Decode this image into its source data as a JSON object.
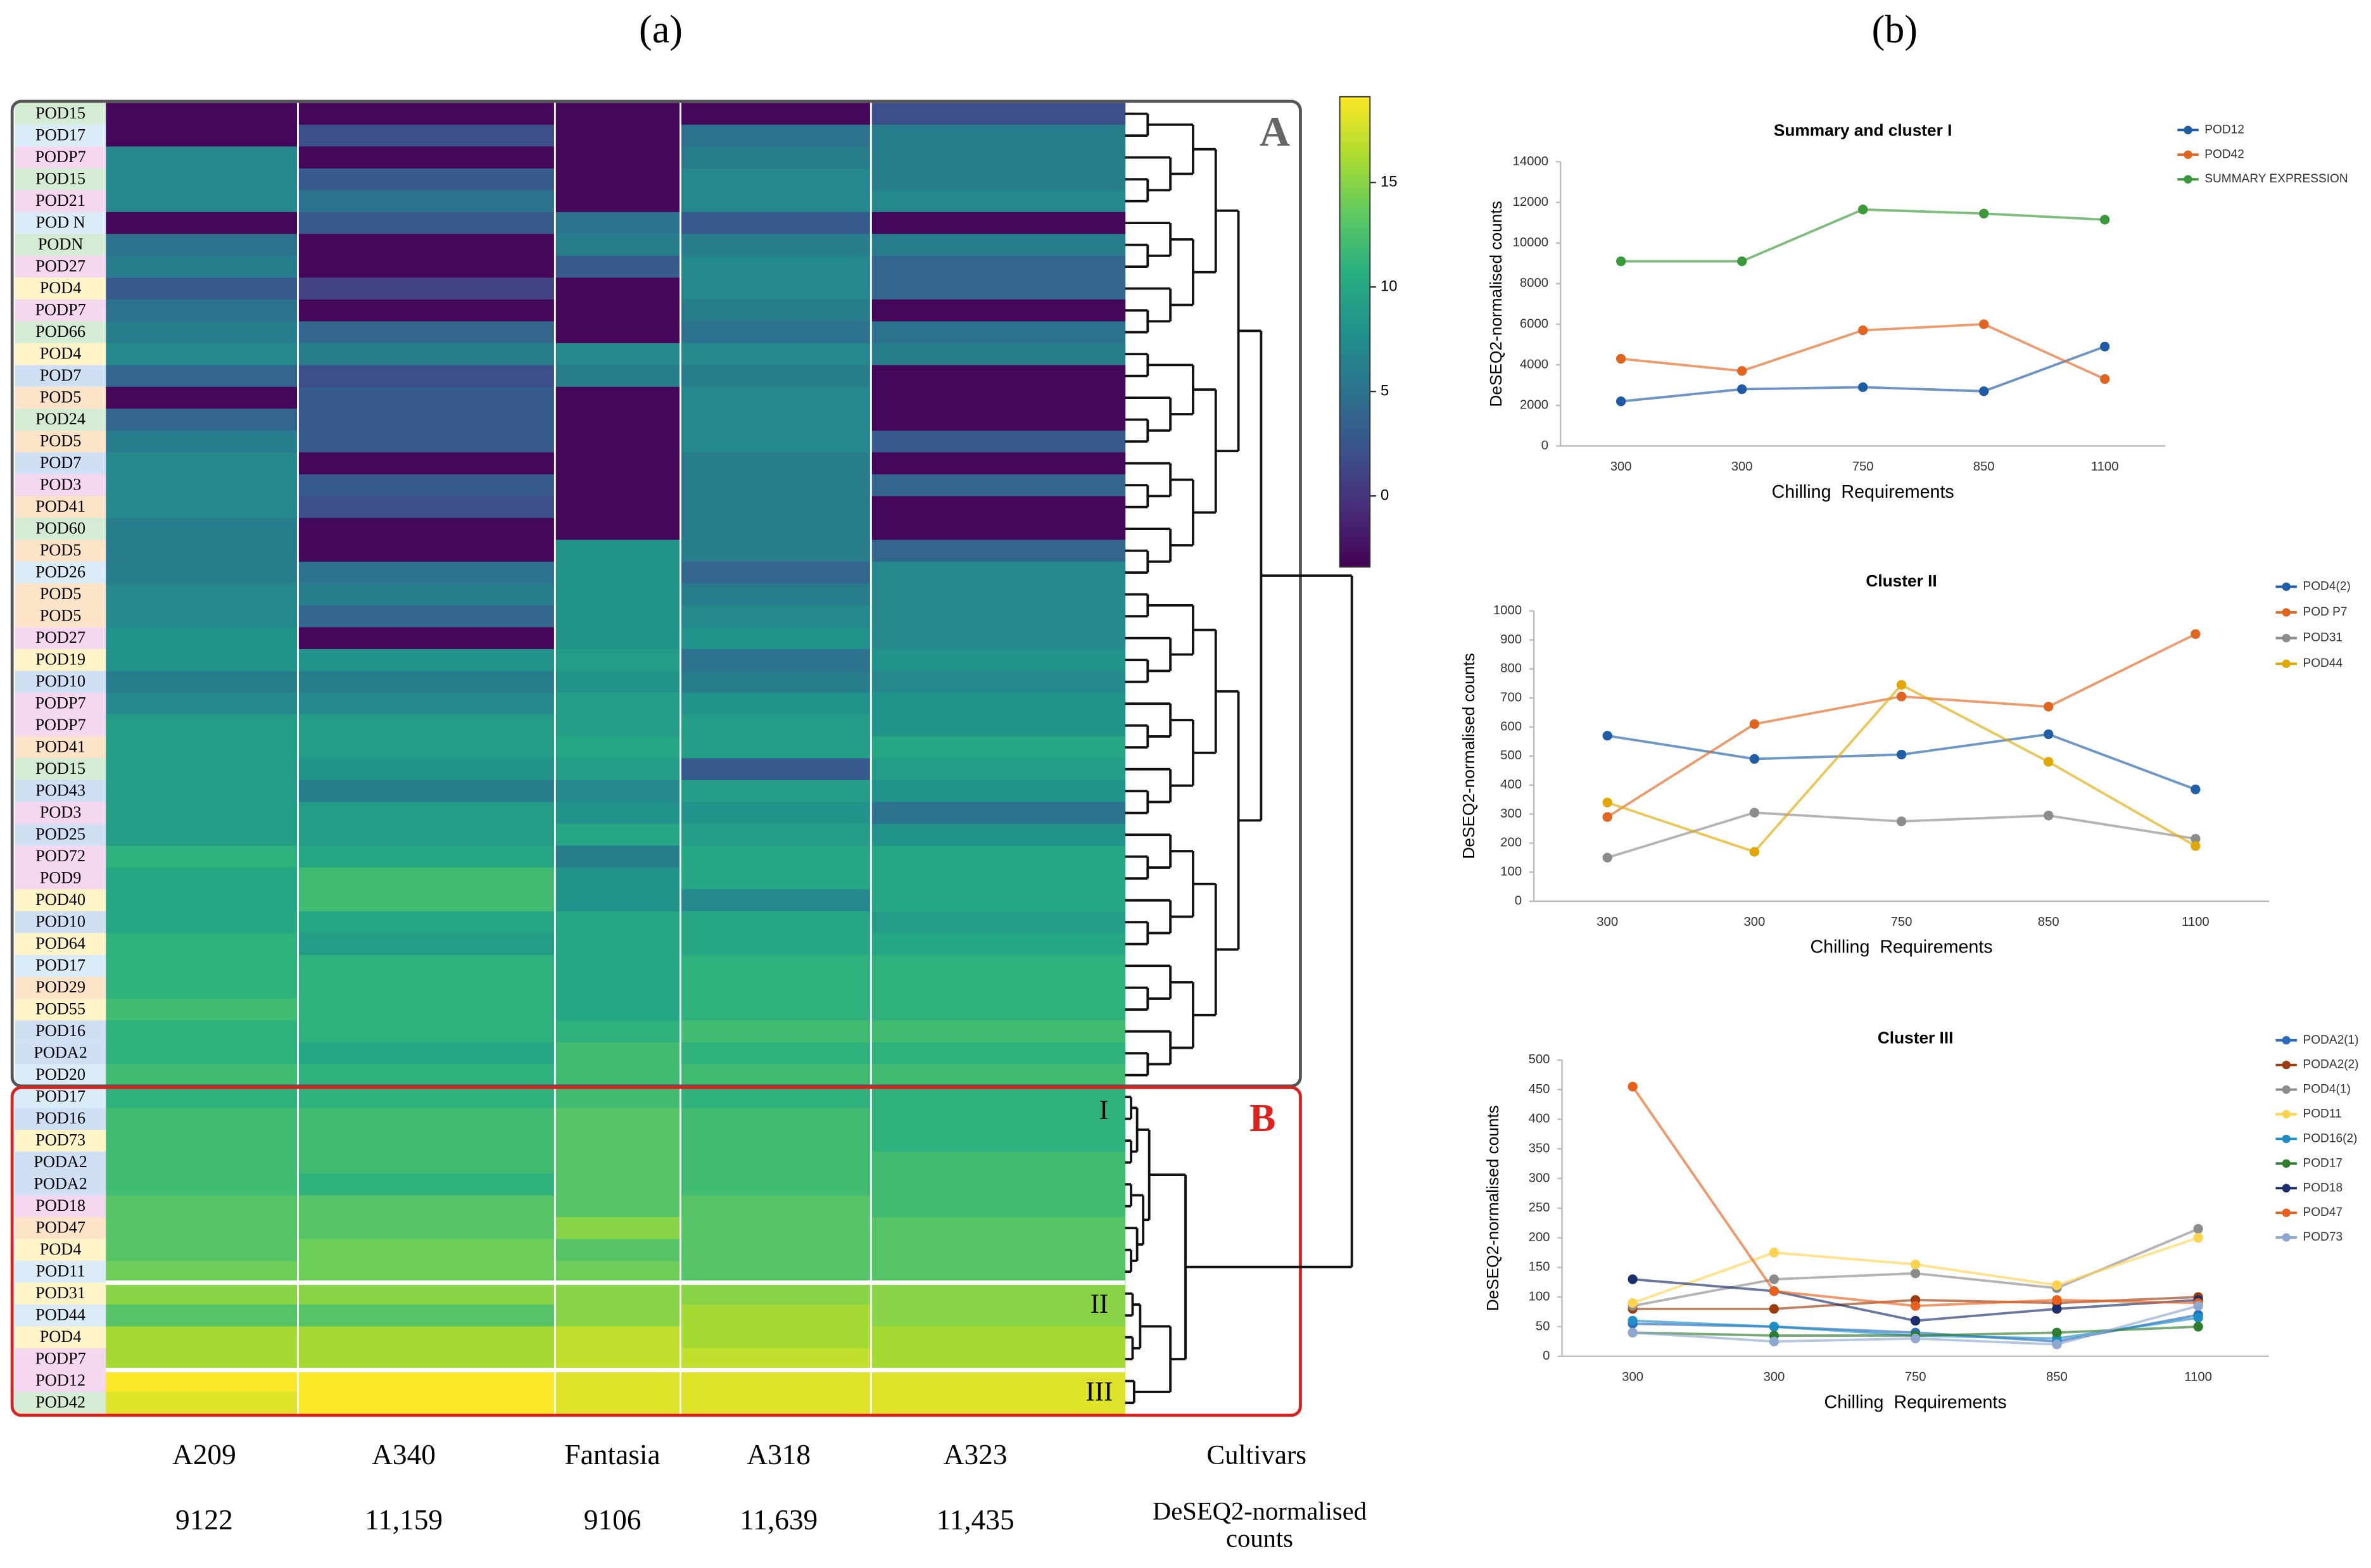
{
  "panel_labels": [
    "(a)",
    "(b)"
  ],
  "chart_data": [
    {
      "type": "heatmap",
      "rows": [
        "POD15",
        "POD17",
        "PODP7",
        "POD15",
        "POD21",
        "POD N",
        "PODN",
        "POD27",
        "POD4",
        "PODP7",
        "POD66",
        "POD4",
        "POD7",
        "POD5",
        "POD24",
        "POD5",
        "POD7",
        "POD3",
        "POD41",
        "POD60",
        "POD5",
        "POD26",
        "POD5",
        "POD5",
        "POD27",
        "POD19",
        "POD10",
        "PODP7",
        "PODP7",
        "POD41",
        "POD15",
        "POD43",
        "POD3",
        "POD25",
        "POD72",
        "POD9",
        "POD40",
        "POD10",
        "POD64",
        "POD17",
        "POD29",
        "POD55",
        "POD16",
        "PODA2",
        "POD20",
        "POD17",
        "POD16",
        "POD73",
        "PODA2",
        "PODA2",
        "POD18",
        "POD47",
        "POD4",
        "POD11",
        "POD31",
        "POD44",
        "POD4",
        "PODP7",
        "POD12",
        "POD42"
      ],
      "columns": [
        "A209",
        "A340",
        "Fantasia",
        "A318",
        "A323"
      ],
      "values": [
        [
          -3,
          -3,
          -3,
          -3,
          2
        ],
        [
          -3,
          2,
          -3,
          5,
          6
        ],
        [
          7,
          -3,
          -3,
          6,
          6
        ],
        [
          7,
          3,
          -3,
          7,
          6
        ],
        [
          7,
          5,
          -3,
          7,
          7
        ],
        [
          -3,
          3,
          5,
          3,
          -3
        ],
        [
          5,
          -3,
          6,
          6,
          6
        ],
        [
          6,
          -3,
          3,
          7,
          4
        ],
        [
          3,
          1,
          -3,
          7,
          4
        ],
        [
          5,
          -3,
          -3,
          6,
          -3
        ],
        [
          6,
          4,
          -3,
          5,
          5
        ],
        [
          7,
          6,
          7,
          7,
          6
        ],
        [
          4,
          2,
          6,
          6,
          -3
        ],
        [
          -3,
          3,
          -3,
          7,
          -3
        ],
        [
          4,
          3,
          -3,
          7,
          -3
        ],
        [
          6,
          3,
          -3,
          7,
          3
        ],
        [
          7,
          -3,
          -3,
          6,
          -3
        ],
        [
          7,
          3,
          -3,
          6,
          4
        ],
        [
          7,
          2,
          -3,
          6,
          -3
        ],
        [
          6,
          -3,
          -3,
          6,
          -3
        ],
        [
          6,
          -3,
          8,
          6,
          4
        ],
        [
          6,
          5,
          8,
          4,
          7
        ],
        [
          7,
          6,
          8,
          6,
          7
        ],
        [
          7,
          4,
          8,
          7,
          7
        ],
        [
          8,
          -3,
          8,
          8,
          7
        ],
        [
          8,
          8,
          9,
          5,
          8
        ],
        [
          6,
          6,
          8,
          6,
          7
        ],
        [
          7,
          7,
          9,
          8,
          8
        ],
        [
          9,
          9,
          9,
          9,
          8
        ],
        [
          9,
          9,
          10,
          9,
          10
        ],
        [
          9,
          8,
          9,
          3,
          9
        ],
        [
          9,
          6,
          7,
          9,
          8
        ],
        [
          9,
          9,
          8,
          8,
          5
        ],
        [
          9,
          9,
          10,
          9,
          8
        ],
        [
          11,
          10,
          6,
          10,
          10
        ],
        [
          10,
          12,
          8,
          10,
          10
        ],
        [
          10,
          12,
          8,
          7,
          10
        ],
        [
          10,
          10,
          10,
          10,
          9
        ],
        [
          11,
          9,
          10,
          10,
          10
        ],
        [
          11,
          11,
          10,
          11,
          11
        ],
        [
          11,
          11,
          10,
          11,
          11
        ],
        [
          12,
          11,
          10,
          11,
          11
        ],
        [
          11,
          11,
          11,
          12,
          12
        ],
        [
          11,
          10,
          12,
          11,
          11
        ],
        [
          12,
          11,
          12,
          12,
          12
        ],
        [
          11,
          11,
          12,
          11,
          11
        ],
        [
          12,
          12,
          13,
          12,
          11
        ],
        [
          12,
          12,
          13,
          12,
          11
        ],
        [
          12,
          12,
          13,
          12,
          12
        ],
        [
          12,
          11,
          13,
          12,
          12
        ],
        [
          13,
          13,
          13,
          13,
          12
        ],
        [
          13,
          13,
          15,
          13,
          13
        ],
        [
          13,
          14,
          13,
          13,
          13
        ],
        [
          14,
          14,
          14,
          13,
          13
        ],
        [
          15,
          15,
          15,
          15,
          15
        ],
        [
          13,
          13,
          15,
          16,
          15
        ],
        [
          16,
          16,
          17,
          16,
          16
        ],
        [
          16,
          16,
          17,
          17,
          16
        ],
        [
          19,
          19,
          18,
          18,
          18
        ],
        [
          18,
          19,
          18,
          18,
          18
        ]
      ],
      "colorbar": {
        "lim": [
          -3.4,
          19.1
        ],
        "ticks": [
          0,
          5,
          10,
          15
        ]
      },
      "cluster_labels": [
        "A",
        "B",
        "I",
        "II",
        "III"
      ],
      "columns_title": "Cultivars",
      "counts": [
        9122,
        11159,
        9106,
        11639,
        11435
      ],
      "count_labels": [
        "9122",
        "11,159",
        "9106",
        "11,639",
        "11,435"
      ],
      "counts_title": [
        "DeSEQ2-normalised",
        "counts"
      ]
    },
    {
      "type": "line",
      "title": "Summary and cluster I",
      "xlabel": "Chilling  Requirements",
      "ylabel": "DeSEQ2-normalised counts",
      "categories": [
        "300",
        "300",
        "750",
        "850",
        "1100"
      ],
      "ylim": [
        0,
        14000
      ],
      "yticks": [
        0,
        2000,
        4000,
        6000,
        8000,
        10000,
        12000,
        14000
      ],
      "series": [
        {
          "name": "POD12",
          "color": "#1f5aa6",
          "values": [
            2200,
            2800,
            2900,
            2700,
            4900
          ]
        },
        {
          "name": "POD42",
          "color": "#e2651f",
          "values": [
            4300,
            3700,
            5700,
            6000,
            3300
          ]
        },
        {
          "name": "SUMMARY EXPRESSION",
          "color": "#3a9a3a",
          "values": [
            9100,
            9100,
            11650,
            11450,
            11150
          ]
        }
      ]
    },
    {
      "type": "line",
      "title": "Cluster II",
      "xlabel": "Chilling  Requirements",
      "ylabel": "DeSEQ2-normalised counts",
      "categories": [
        "300",
        "300",
        "750",
        "850",
        "1100"
      ],
      "ylim": [
        0,
        1000
      ],
      "yticks": [
        0,
        100,
        200,
        300,
        400,
        500,
        600,
        700,
        800,
        900,
        1000
      ],
      "series": [
        {
          "name": "POD4(2)",
          "color": "#1f5fa8",
          "values": [
            570,
            490,
            505,
            575,
            385
          ]
        },
        {
          "name": "POD P7",
          "color": "#e2651f",
          "values": [
            290,
            610,
            705,
            670,
            920
          ]
        },
        {
          "name": "POD31",
          "color": "#8c8c8c",
          "values": [
            150,
            305,
            275,
            295,
            215
          ]
        },
        {
          "name": "POD44",
          "color": "#e0a800",
          "values": [
            340,
            170,
            745,
            480,
            190
          ]
        }
      ]
    },
    {
      "type": "line",
      "title": "Cluster III",
      "xlabel": "Chilling  Requirements",
      "ylabel": "DeSEQ2-normalised counts",
      "categories": [
        "300",
        "300",
        "750",
        "850",
        "1100"
      ],
      "ylim": [
        0,
        500
      ],
      "yticks": [
        0,
        50,
        100,
        150,
        200,
        250,
        300,
        350,
        400,
        450,
        500
      ],
      "series": [
        {
          "name": "PODA2(1)",
          "color": "#2a6bbf",
          "values": [
            55,
            50,
            40,
            25,
            70
          ]
        },
        {
          "name": "PODA2(2)",
          "color": "#9c3c10",
          "values": [
            80,
            80,
            95,
            90,
            100
          ]
        },
        {
          "name": "POD4(1)",
          "color": "#8c8c8c",
          "values": [
            85,
            130,
            140,
            115,
            215
          ]
        },
        {
          "name": "POD11",
          "color": "#ffd34d",
          "values": [
            90,
            175,
            155,
            120,
            200
          ]
        },
        {
          "name": "POD16(2)",
          "color": "#1f8ec4",
          "values": [
            60,
            50,
            35,
            30,
            65
          ]
        },
        {
          "name": "POD17",
          "color": "#2e7d2e",
          "values": [
            40,
            35,
            35,
            40,
            50
          ]
        },
        {
          "name": "POD18",
          "color": "#1a2f6b",
          "values": [
            130,
            110,
            60,
            80,
            95
          ]
        },
        {
          "name": "POD47",
          "color": "#e8601c",
          "values": [
            455,
            110,
            85,
            95,
            90
          ]
        },
        {
          "name": "POD73",
          "color": "#8fa8d0",
          "values": [
            40,
            25,
            30,
            20,
            85
          ]
        }
      ]
    }
  ]
}
